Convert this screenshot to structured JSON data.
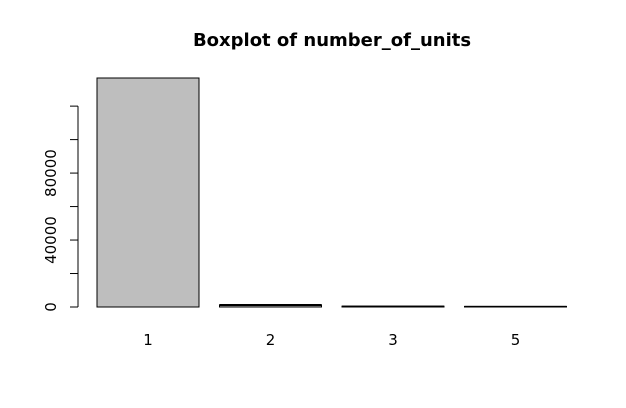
{
  "chart_data": {
    "type": "bar",
    "title": "Boxplot of number_of_units",
    "categories": [
      "1",
      "2",
      "3",
      "5"
    ],
    "values": [
      136800,
      1200,
      500,
      350
    ],
    "ylim": [
      0,
      136800
    ],
    "y_ticks_labeled": [
      0,
      40000,
      80000
    ],
    "y_ticks_minor": [
      20000,
      60000,
      100000,
      120000
    ],
    "xlabel": "",
    "ylabel": "",
    "grid": false,
    "bar_fill": "#bebebe",
    "stroke": "#000000"
  }
}
